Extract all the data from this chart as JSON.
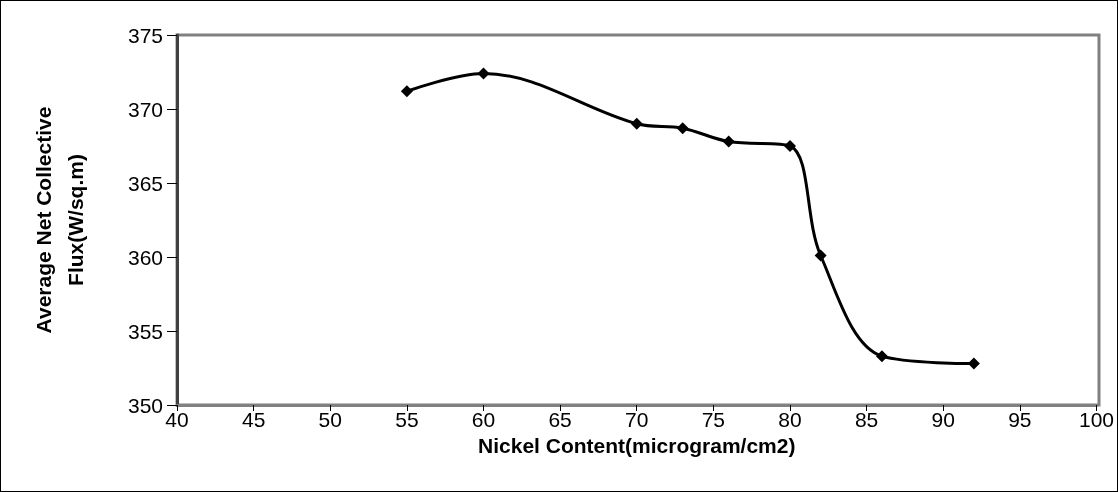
{
  "chart_data": {
    "type": "line",
    "xlabel": "Nickel Content(microgram/cm2)",
    "ylabel": "Average Net Collective\nFlux(W/sq.m)",
    "x": [
      55,
      60,
      70,
      73,
      76,
      80,
      82,
      86,
      92
    ],
    "series": [
      {
        "color": "#000000",
        "values": [
          371.2,
          372.4,
          369.0,
          368.7,
          367.8,
          367.5,
          360.1,
          353.3,
          352.8
        ]
      }
    ],
    "xlim": [
      40,
      100
    ],
    "xticks": [
      40,
      45,
      50,
      55,
      60,
      65,
      70,
      75,
      80,
      85,
      90,
      95,
      100
    ],
    "ylim": [
      350,
      375
    ],
    "yticks": [
      350,
      355,
      360,
      365,
      370,
      375
    ],
    "grid": false,
    "marker": "diamond",
    "line_style": "solid"
  }
}
